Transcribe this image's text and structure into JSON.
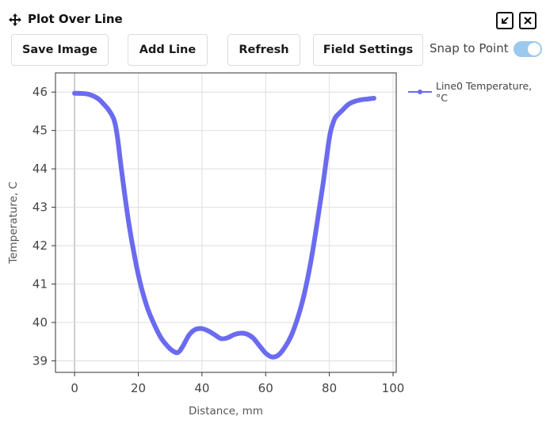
{
  "panel": {
    "title": "Plot Over Line"
  },
  "toolbar": {
    "save_image": "Save Image",
    "add_line": "Add Line",
    "refresh": "Refresh",
    "field_settings": "Field Settings",
    "snap_label": "Snap to Point",
    "snap_enabled": true
  },
  "icons": [
    "move-icon",
    "collapse-icon",
    "close-icon"
  ],
  "colors": {
    "series": "#6b6bef",
    "toggle_on": "#9cc9ee"
  },
  "chart_data": {
    "type": "line",
    "xlabel": "Distance, mm",
    "ylabel": "Temperature, C",
    "xlim": [
      -6,
      101
    ],
    "ylim": [
      38.7,
      46.5
    ],
    "xticks": [
      0,
      20,
      40,
      60,
      80,
      100
    ],
    "yticks": [
      39,
      40,
      41,
      42,
      43,
      44,
      45,
      46
    ],
    "grid": true,
    "legend_position": "top-right",
    "series": [
      {
        "name": "Line0 Temperature, °C",
        "x": [
          0,
          4,
          7,
          9,
          11,
          12.5,
          13.5,
          15,
          17,
          19,
          21,
          23,
          25,
          27,
          29,
          31,
          32.5,
          34,
          36,
          38,
          40,
          42,
          44,
          46,
          48,
          50,
          52,
          54,
          56,
          58,
          60,
          62,
          64,
          66,
          68,
          70,
          72,
          74,
          76,
          78,
          80,
          81,
          82,
          84,
          86,
          88,
          90,
          92,
          94
        ],
        "y": [
          45.97,
          45.95,
          45.85,
          45.7,
          45.5,
          45.25,
          44.8,
          43.8,
          42.6,
          41.65,
          40.9,
          40.35,
          39.95,
          39.62,
          39.4,
          39.25,
          39.22,
          39.38,
          39.68,
          39.82,
          39.84,
          39.78,
          39.68,
          39.58,
          39.6,
          39.68,
          39.72,
          39.7,
          39.6,
          39.4,
          39.2,
          39.1,
          39.15,
          39.35,
          39.65,
          40.1,
          40.7,
          41.5,
          42.5,
          43.6,
          44.8,
          45.15,
          45.35,
          45.52,
          45.68,
          45.76,
          45.8,
          45.82,
          45.84
        ]
      }
    ]
  }
}
